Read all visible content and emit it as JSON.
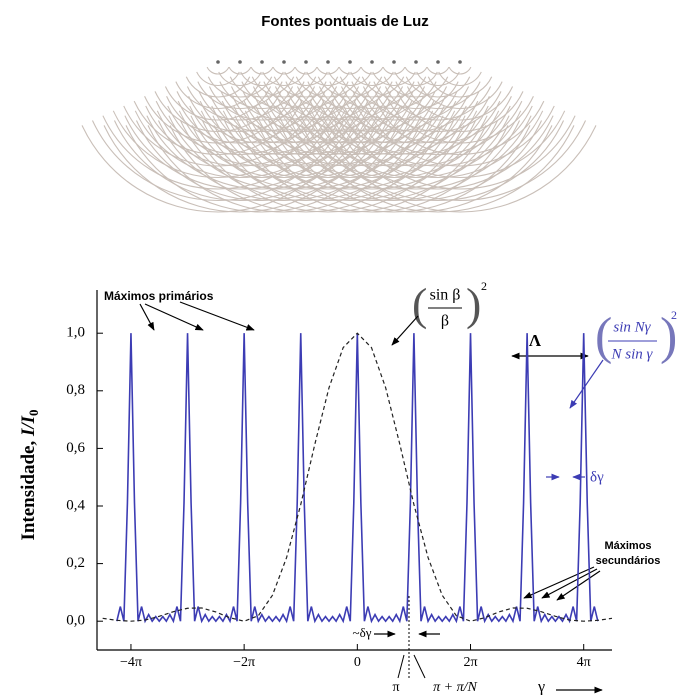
{
  "header": {
    "title": "Fontes pontuais de Luz"
  },
  "chart_data": {
    "type": "line",
    "y_label": {
      "text": "Intensidade, ",
      "symbol": "I/I",
      "subscript": "0"
    },
    "xlim": [
      -4.6,
      4.5
    ],
    "ylim": [
      -0.1,
      1.15
    ],
    "xticks": [
      {
        "value": -4,
        "label": "−4π"
      },
      {
        "value": -2,
        "label": "−2π"
      },
      0,
      {
        "value": 2,
        "label": "2π"
      },
      {
        "value": 4,
        "label": "4π"
      }
    ],
    "yticks": [
      {
        "value": 0,
        "label": "0,0"
      },
      {
        "value": 0.2,
        "label": "0,2"
      },
      {
        "value": 0.4,
        "label": "0,4"
      },
      {
        "value": 0.6,
        "label": "0,6"
      },
      {
        "value": 0.8,
        "label": "0,8"
      },
      {
        "value": 1,
        "label": "1,0"
      }
    ],
    "series": [
      {
        "color": "#3c3cb4",
        "style": "solid",
        "x": [
          -4.25,
          -4.1875,
          -4.125,
          -4.0625,
          -4,
          -3.9375,
          -3.875,
          -3.8125,
          -3.75,
          -3.6875,
          -3.625,
          -3.5625,
          -3.5,
          -3.4375,
          -3.375,
          -3.3125,
          -3.25,
          -3.1875,
          -3.125,
          -3.0625,
          -3,
          -2.9375,
          -2.875,
          -2.8125,
          -2.75,
          -2.6875,
          -2.625,
          -2.5625,
          -2.5,
          -2.4375,
          -2.375,
          -2.3125,
          -2.25,
          -2.1875,
          -2.125,
          -2.0625,
          -2,
          -1.9375,
          -1.875,
          -1.8125,
          -1.75,
          -1.6875,
          -1.625,
          -1.5625,
          -1.5,
          -1.4375,
          -1.375,
          -1.3125,
          -1.25,
          -1.1875,
          -1.125,
          -1.0625,
          -1,
          -0.9375,
          -0.875,
          -0.8125,
          -0.75,
          -0.6875,
          -0.625,
          -0.5625,
          -0.5,
          -0.4375,
          -0.375,
          -0.3125,
          -0.25,
          -0.1875,
          -0.125,
          -0.0625,
          0,
          0.0625,
          0.125,
          0.1875,
          0.25,
          0.3125,
          0.375,
          0.4375,
          0.5,
          0.5625,
          0.625,
          0.6875,
          0.75,
          0.8125,
          0.875,
          0.9375,
          1,
          1.0625,
          1.125,
          1.1875,
          1.25,
          1.3125,
          1.375,
          1.4375,
          1.5,
          1.5625,
          1.625,
          1.6875,
          1.75,
          1.8125,
          1.875,
          1.9375,
          2,
          2.0625,
          2.125,
          2.1875,
          2.25,
          2.3125,
          2.375,
          2.4375,
          2.5,
          2.5625,
          2.625,
          2.6875,
          2.75,
          2.8125,
          2.875,
          2.9375,
          3,
          3.0625,
          3.125,
          3.1875,
          3.25,
          3.3125,
          3.375,
          3.4375,
          3.5,
          3.5625,
          3.625,
          3.6875,
          3.75,
          3.8125,
          3.875,
          3.9375,
          4,
          4.0625,
          4.125,
          4.1875,
          4.25
        ],
        "values": [
          0,
          0.051,
          0,
          0.41,
          1,
          0.41,
          0,
          0.051,
          0,
          0.023,
          0,
          0.016,
          0,
          0.016,
          0,
          0.023,
          0,
          0.051,
          0,
          0.41,
          1,
          0.41,
          0,
          0.051,
          0,
          0.023,
          0,
          0.016,
          0,
          0.016,
          0,
          0.023,
          0,
          0.051,
          0,
          0.41,
          1,
          0.41,
          0,
          0.051,
          0,
          0.023,
          0,
          0.016,
          0,
          0.016,
          0,
          0.023,
          0,
          0.051,
          0,
          0.41,
          1,
          0.41,
          0,
          0.051,
          0,
          0.023,
          0,
          0.016,
          0,
          0.016,
          0,
          0.023,
          0,
          0.051,
          0,
          0.41,
          1,
          0.41,
          0,
          0.051,
          0,
          0.023,
          0,
          0.016,
          0,
          0.016,
          0,
          0.023,
          0,
          0.051,
          0,
          0.41,
          1,
          0.41,
          0,
          0.051,
          0,
          0.023,
          0,
          0.016,
          0,
          0.016,
          0,
          0.023,
          0,
          0.051,
          0,
          0.41,
          1,
          0.41,
          0,
          0.051,
          0,
          0.023,
          0,
          0.016,
          0,
          0.016,
          0,
          0.023,
          0,
          0.051,
          0,
          0.41,
          1,
          0.41,
          0,
          0.051,
          0,
          0.023,
          0,
          0.016,
          0,
          0.016,
          0,
          0.023,
          0,
          0.051,
          0,
          0.41,
          1,
          0.41,
          0,
          0.051,
          0
        ]
      },
      {
        "color": "#222222",
        "style": "dashed",
        "x": [
          -4.5,
          -4.25,
          -4,
          -3.75,
          -3.5,
          -3.25,
          -3,
          -2.75,
          -2.5,
          -2.25,
          -2,
          -1.75,
          -1.5,
          -1.25,
          -1,
          -0.75,
          -0.5,
          -0.25,
          0,
          0.25,
          0.5,
          0.75,
          1,
          1.25,
          1.5,
          1.75,
          2,
          2.25,
          2.5,
          2.75,
          3,
          3.25,
          3.5,
          3.75,
          4,
          4.25,
          4.5
        ],
        "values": [
          0.01,
          0.003,
          0,
          0.004,
          0.017,
          0.033,
          0.045,
          0.046,
          0.032,
          0.012,
          0,
          0.019,
          0.09,
          0.221,
          0.405,
          0.615,
          0.811,
          0.95,
          1,
          0.95,
          0.811,
          0.615,
          0.405,
          0.221,
          0.09,
          0.019,
          0,
          0.012,
          0.032,
          0.046,
          0.045,
          0.033,
          0.017,
          0.004,
          0,
          0.003,
          0.01
        ]
      }
    ],
    "annotations": {
      "primary_maxima": "Máximos primários",
      "secondary_maxima": [
        "Máximos",
        "secundários"
      ],
      "envelope_formula": {
        "numerator": "sin β",
        "denominator": "β",
        "exponent": "2"
      },
      "array_formula": {
        "numerator": "sin Nγ",
        "denominator": "N sin γ",
        "exponent": "2"
      },
      "period": "Λ",
      "peak_width": "δγ",
      "half_width": "~δγ",
      "pi": "π",
      "pi_plus": "π + π/N",
      "gamma": "γ"
    }
  }
}
